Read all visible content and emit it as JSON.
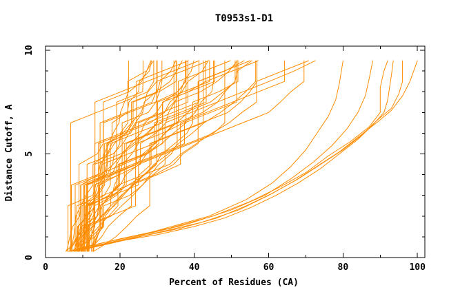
{
  "title": "T0953s1-D1",
  "chart_data": {
    "type": "line",
    "title": "T0953s1-D1",
    "xlabel": "Percent of Residues (CA)",
    "ylabel": "Distance Cutoff, A",
    "xlim": [
      0,
      102
    ],
    "ylim": [
      0,
      10.2
    ],
    "x_major_ticks": [
      0,
      20,
      40,
      60,
      80,
      100
    ],
    "x_minor_ticks": [
      10,
      30,
      50,
      70,
      90
    ],
    "y_major_ticks": [
      0,
      5,
      10
    ],
    "y_minor_ticks": [
      1,
      2,
      3,
      4,
      6,
      7,
      8,
      9
    ],
    "grid": false,
    "legend": "none",
    "line_color": "#ff8c00",
    "axis_color": "#000000",
    "background_color": "#ffffff",
    "description": "GDT plot: each curve is one predicted model; x = percent of CA residues within distance cutoff, y = distance cutoff in Angstroms. Curves are staircases evaluated at cutoffs 0.5 to 9.5 in 0.5 steps, starting near (6,0.3) and topping out at y=9.5 between x=26 and x=100.",
    "bundle": {
      "note": "dense unlabeled bundle of overlapping model curves",
      "count": 46,
      "start_x_min": 5.5,
      "start_x_max": 13,
      "start_y": 0.3,
      "top_x_min": 26,
      "top_x_max": 80,
      "top_y": 9.5,
      "cutoff_step": 0.5,
      "shape_min": 0.8,
      "shape_max": 2.0,
      "hold_probability": 0.45,
      "jitter": 2.4,
      "max_step_dx": 7,
      "x_max_clip": 101.5
    },
    "outlier_series": [
      {
        "name": "outlier-curve-1",
        "points": [
          [
            6,
            0.3
          ],
          [
            12,
            0.5
          ],
          [
            20,
            0.8
          ],
          [
            30,
            1.1
          ],
          [
            40,
            1.5
          ],
          [
            48,
            1.9
          ],
          [
            55,
            2.4
          ],
          [
            62,
            3.0
          ],
          [
            68,
            3.6
          ],
          [
            74,
            4.3
          ],
          [
            79,
            5.0
          ],
          [
            84,
            5.7
          ],
          [
            88,
            6.4
          ],
          [
            91,
            7.0
          ],
          [
            92,
            7.6
          ],
          [
            93,
            8.8
          ],
          [
            93.5,
            9.5
          ]
        ]
      },
      {
        "name": "outlier-curve-2",
        "points": [
          [
            7,
            0.3
          ],
          [
            15,
            0.6
          ],
          [
            25,
            1.0
          ],
          [
            36,
            1.4
          ],
          [
            46,
            1.9
          ],
          [
            54,
            2.5
          ],
          [
            61,
            3.1
          ],
          [
            68,
            3.8
          ],
          [
            74,
            4.5
          ],
          [
            80,
            5.2
          ],
          [
            85,
            5.9
          ],
          [
            89,
            6.6
          ],
          [
            93,
            7.2
          ],
          [
            95,
            7.9
          ],
          [
            96,
            8.5
          ],
          [
            96,
            9.5
          ]
        ]
      },
      {
        "name": "outlier-curve-3",
        "points": [
          [
            8,
            0.3
          ],
          [
            18,
            0.7
          ],
          [
            30,
            1.2
          ],
          [
            42,
            1.7
          ],
          [
            52,
            2.3
          ],
          [
            60,
            3.0
          ],
          [
            67,
            3.7
          ],
          [
            73,
            4.4
          ],
          [
            79,
            5.1
          ],
          [
            84,
            5.8
          ],
          [
            89,
            6.5
          ],
          [
            93,
            7.1
          ],
          [
            96,
            7.8
          ],
          [
            98,
            8.5
          ],
          [
            99,
            9.0
          ],
          [
            100,
            9.5
          ]
        ]
      },
      {
        "name": "outlier-curve-4",
        "points": [
          [
            8,
            0.4
          ],
          [
            20,
            0.9
          ],
          [
            33,
            1.4
          ],
          [
            45,
            2.0
          ],
          [
            55,
            2.7
          ],
          [
            63,
            3.4
          ],
          [
            70,
            4.1
          ],
          [
            76,
            4.9
          ],
          [
            82,
            5.6
          ],
          [
            87,
            6.3
          ],
          [
            90,
            7.0
          ],
          [
            90,
            8.2
          ],
          [
            91,
            9.0
          ],
          [
            92,
            9.5
          ]
        ]
      },
      {
        "name": "outlier-curve-5",
        "points": [
          [
            9,
            0.4
          ],
          [
            24,
            1.0
          ],
          [
            38,
            1.6
          ],
          [
            50,
            2.3
          ],
          [
            59,
            3.0
          ],
          [
            66,
            3.8
          ],
          [
            72,
            4.6
          ],
          [
            77,
            5.4
          ],
          [
            81,
            6.2
          ],
          [
            84,
            7.0
          ],
          [
            86,
            7.8
          ],
          [
            87,
            8.6
          ],
          [
            88,
            9.5
          ]
        ]
      },
      {
        "name": "outlier-curve-6",
        "points": [
          [
            10,
            0.5
          ],
          [
            28,
            1.2
          ],
          [
            44,
            2.0
          ],
          [
            54,
            2.8
          ],
          [
            61,
            3.6
          ],
          [
            66,
            4.4
          ],
          [
            70,
            5.2
          ],
          [
            73,
            6.0
          ],
          [
            76,
            6.8
          ],
          [
            78,
            7.6
          ],
          [
            79,
            8.4
          ],
          [
            80,
            9.5
          ]
        ]
      }
    ]
  }
}
